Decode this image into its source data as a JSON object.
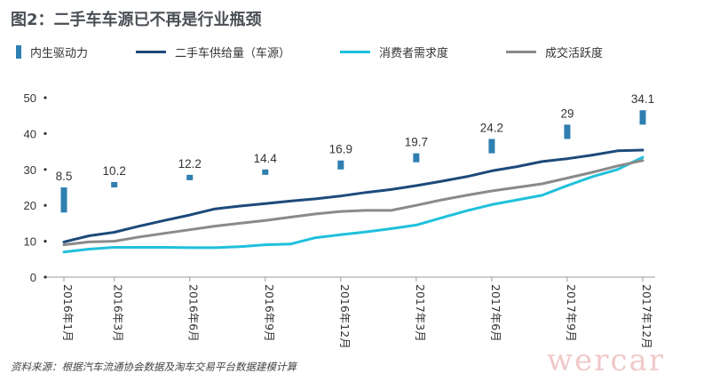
{
  "title": "图2：二手车车源已不再是行业瓶颈",
  "legend": {
    "bar": "内生驱动力",
    "supply": "二手车供给量（车源）",
    "demand": "消费者需求度",
    "activity": "成交活跃度"
  },
  "source": "资料来源：根据汽车流通协会数据及淘车交易平台数据建模计算",
  "watermark": "wercar",
  "colors": {
    "bar": "#2f7fb0",
    "supply": "#1c4a7a",
    "demand": "#1fc0dc",
    "activity": "#8a8a8a"
  },
  "chart_data": {
    "type": "line",
    "ylim": [
      0,
      50
    ],
    "yticks": [
      0,
      10,
      20,
      30,
      40,
      50
    ],
    "xlim": [
      1,
      24
    ],
    "xticks": [
      {
        "x": 1,
        "label": "2016年1月"
      },
      {
        "x": 3,
        "label": "2016年3月"
      },
      {
        "x": 6,
        "label": "2016年6月"
      },
      {
        "x": 9,
        "label": "2016年9月"
      },
      {
        "x": 12,
        "label": "2016年12月"
      },
      {
        "x": 15,
        "label": "2017年3月"
      },
      {
        "x": 18,
        "label": "2017年6月"
      },
      {
        "x": 21,
        "label": "2017年9月"
      },
      {
        "x": 24,
        "label": "2017年12月"
      }
    ],
    "bars": {
      "name": "内生驱动力",
      "points": [
        {
          "x": 1,
          "low": 18,
          "high": 25,
          "label": "8.5"
        },
        {
          "x": 3,
          "low": 25,
          "high": 26.5,
          "label": "10.2"
        },
        {
          "x": 6,
          "low": 27,
          "high": 28.5,
          "label": "12.2"
        },
        {
          "x": 9,
          "low": 28.5,
          "high": 30,
          "label": "14.4"
        },
        {
          "x": 12,
          "low": 30,
          "high": 32.5,
          "label": "16.9"
        },
        {
          "x": 15,
          "low": 32,
          "high": 34.5,
          "label": "19.7"
        },
        {
          "x": 18,
          "low": 34.5,
          "high": 38.5,
          "label": "24.2"
        },
        {
          "x": 21,
          "low": 38.5,
          "high": 42.5,
          "label": "29"
        },
        {
          "x": 24,
          "low": 42.5,
          "high": 46.5,
          "label": "34.1"
        }
      ]
    },
    "series": [
      {
        "name": "二手车供给量（车源）",
        "color": "#1c4a7a",
        "x": [
          1,
          2,
          3,
          4,
          5,
          6,
          7,
          8,
          9,
          10,
          11,
          12,
          13,
          14,
          15,
          16,
          17,
          18,
          19,
          20,
          21,
          22,
          23,
          24
        ],
        "values": [
          9.8,
          11.5,
          12.5,
          14.2,
          15.8,
          17.3,
          19,
          19.8,
          20.5,
          21.2,
          21.8,
          22.6,
          23.6,
          24.4,
          25.5,
          26.7,
          28,
          29.6,
          30.8,
          32.2,
          33,
          34,
          35.2,
          35.4
        ]
      },
      {
        "name": "消费者需求度",
        "color": "#1fc0dc",
        "x": [
          1,
          2,
          3,
          4,
          5,
          6,
          7,
          8,
          9,
          10,
          11,
          12,
          13,
          14,
          15,
          16,
          17,
          18,
          19,
          20,
          21,
          22,
          23,
          24
        ],
        "values": [
          7,
          7.8,
          8.3,
          8.3,
          8.3,
          8.2,
          8.2,
          8.5,
          9,
          9.2,
          11,
          11.8,
          12.6,
          13.5,
          14.5,
          16.5,
          18.5,
          20.2,
          21.5,
          22.8,
          25.5,
          28,
          30,
          33.4
        ]
      },
      {
        "name": "成交活跃度",
        "color": "#8a8a8a",
        "x": [
          1,
          2,
          3,
          4,
          5,
          6,
          7,
          8,
          9,
          10,
          11,
          12,
          13,
          14,
          15,
          16,
          17,
          18,
          19,
          20,
          21,
          22,
          23,
          24
        ],
        "values": [
          9,
          9.8,
          10,
          11.2,
          12.2,
          13.2,
          14.2,
          15,
          15.8,
          16.7,
          17.6,
          18.3,
          18.6,
          18.6,
          20,
          21.5,
          22.8,
          24,
          25,
          26,
          27.6,
          29.2,
          31,
          32.5
        ]
      }
    ]
  }
}
